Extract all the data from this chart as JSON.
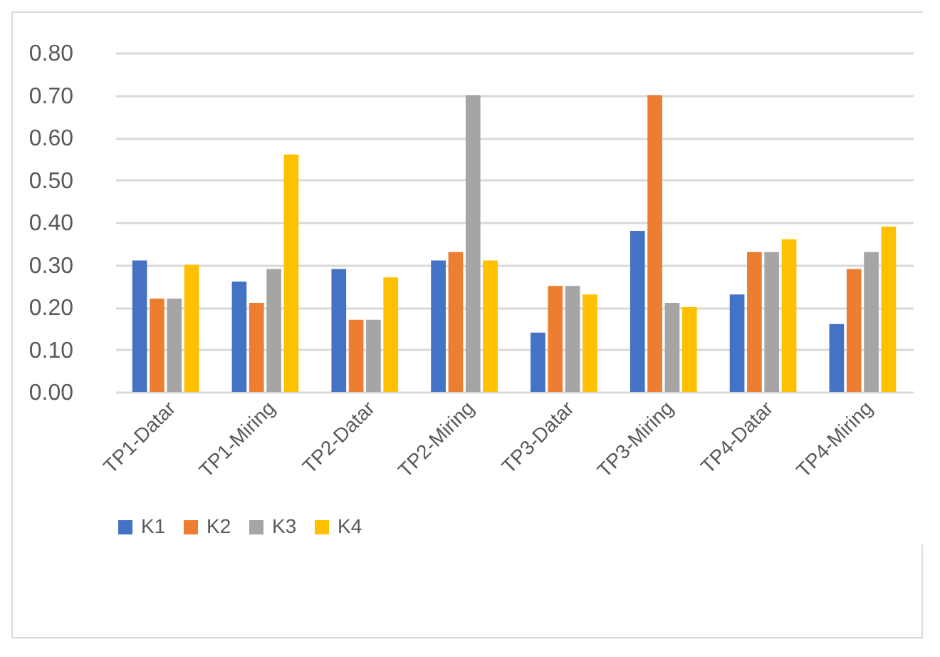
{
  "chart_data": {
    "type": "bar",
    "categories": [
      "TP1-Datar",
      "TP1-Miring",
      "TP2-Datar",
      "TP2-Miring",
      "TP3-Datar",
      "TP3-Miring",
      "TP4-Datar",
      "TP4-Miring"
    ],
    "series": [
      {
        "name": "K1",
        "color": "#4472c4",
        "values": [
          0.31,
          0.26,
          0.29,
          0.31,
          0.14,
          0.38,
          0.23,
          0.16
        ]
      },
      {
        "name": "K2",
        "color": "#ed7d31",
        "values": [
          0.22,
          0.21,
          0.17,
          0.33,
          0.25,
          0.7,
          0.33,
          0.29
        ]
      },
      {
        "name": "K3",
        "color": "#a5a5a5",
        "values": [
          0.22,
          0.29,
          0.17,
          0.7,
          0.25,
          0.21,
          0.33,
          0.33
        ]
      },
      {
        "name": "K4",
        "color": "#ffc000",
        "values": [
          0.3,
          0.56,
          0.27,
          0.31,
          0.23,
          0.2,
          0.36,
          0.39
        ]
      }
    ],
    "ylim": [
      0,
      0.8
    ],
    "yticks": [
      {
        "value": 0,
        "label": "0.00"
      },
      {
        "value": 0.1,
        "label": "0.10"
      },
      {
        "value": 0.2,
        "label": "0.20"
      },
      {
        "value": 0.3,
        "label": "0.30"
      },
      {
        "value": 0.4,
        "label": "0.40"
      },
      {
        "value": 0.5,
        "label": "0.50"
      },
      {
        "value": 0.6,
        "label": "0.60"
      },
      {
        "value": 0.7,
        "label": "0.70"
      },
      {
        "value": 0.8,
        "label": "0.80"
      }
    ],
    "grid": "y",
    "legend": "bottom"
  }
}
